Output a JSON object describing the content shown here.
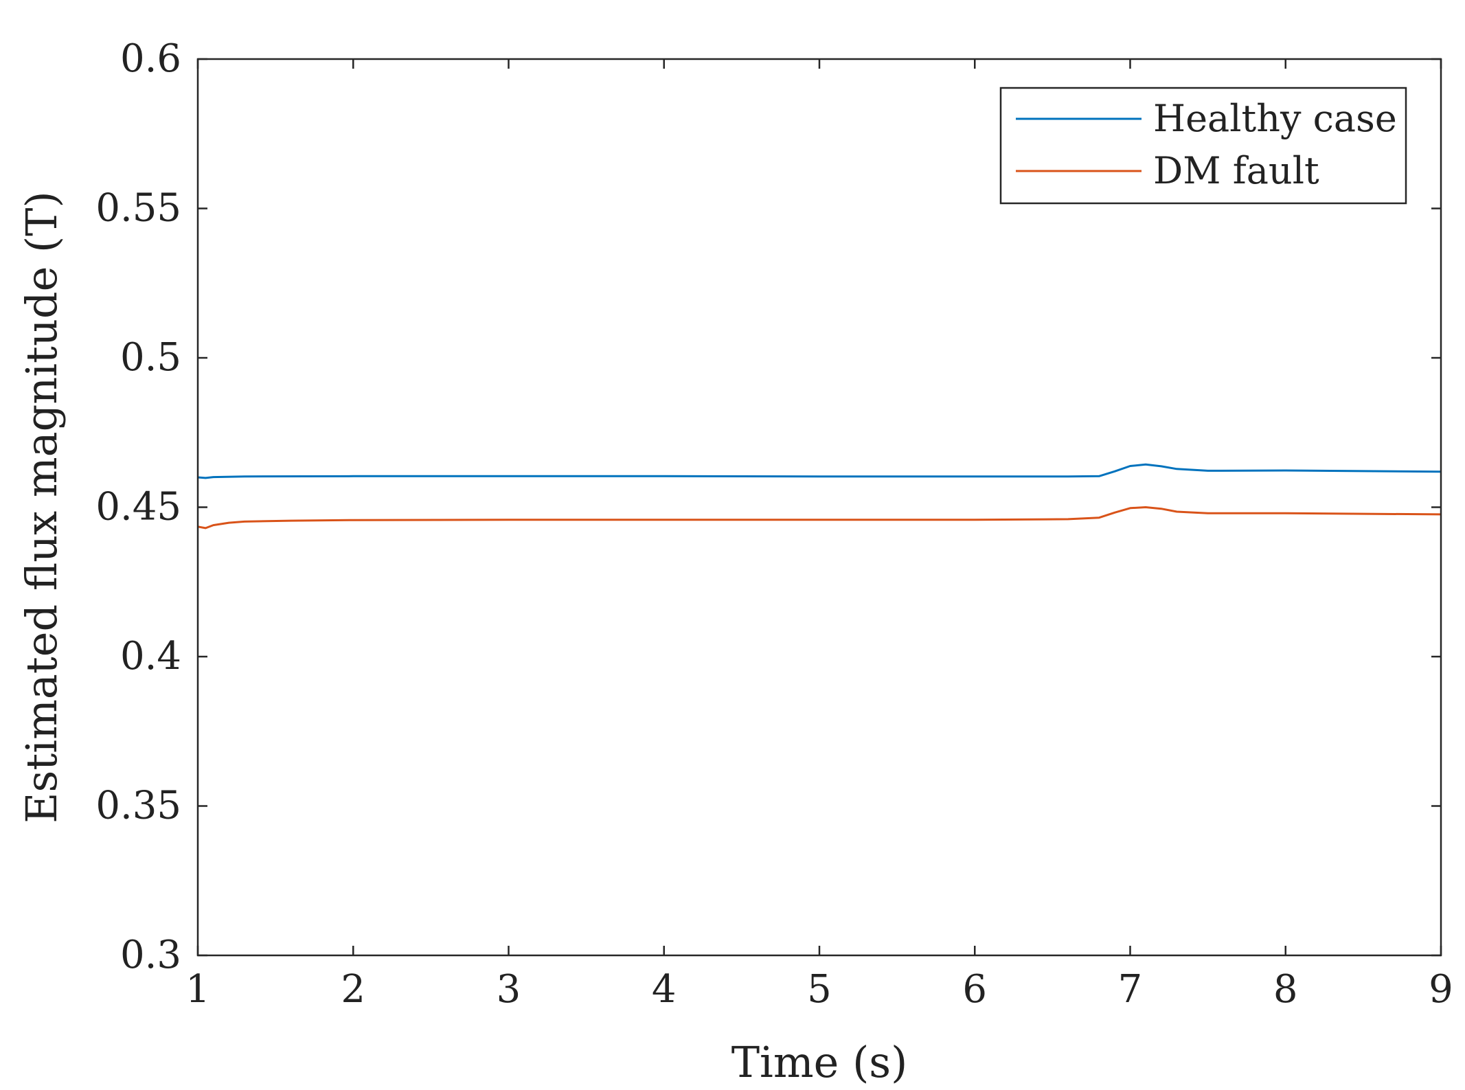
{
  "chart_data": {
    "type": "line",
    "title": "",
    "xlabel": "Time (s)",
    "ylabel": "Estimated flux magnitude (T)",
    "xlim": [
      1,
      9
    ],
    "ylim": [
      0.3,
      0.6
    ],
    "xticks": [
      1,
      2,
      3,
      4,
      5,
      6,
      7,
      8,
      9
    ],
    "yticks": [
      0.3,
      0.35,
      0.4,
      0.45,
      0.5,
      0.55,
      0.6
    ],
    "x_tick_labels": [
      "1",
      "2",
      "3",
      "4",
      "5",
      "6",
      "7",
      "8",
      "9"
    ],
    "y_tick_labels": [
      "0.3",
      "0.35",
      "0.4",
      "0.45",
      "0.5",
      "0.55",
      "0.6"
    ],
    "grid": false,
    "legend_position": "top-right",
    "series": [
      {
        "name": "Healthy case",
        "color": "#0072BD",
        "x": [
          1.0,
          1.05,
          1.1,
          1.3,
          2.0,
          3.0,
          4.0,
          5.0,
          6.0,
          6.6,
          6.8,
          6.9,
          7.0,
          7.1,
          7.2,
          7.3,
          7.5,
          8.0,
          8.5,
          9.0
        ],
        "y": [
          0.46,
          0.4598,
          0.4601,
          0.4603,
          0.4604,
          0.4604,
          0.4604,
          0.4603,
          0.4603,
          0.4603,
          0.4604,
          0.462,
          0.4638,
          0.4643,
          0.4637,
          0.4628,
          0.4622,
          0.4623,
          0.4621,
          0.4619
        ]
      },
      {
        "name": "DM fault",
        "color": "#D95319",
        "x": [
          1.0,
          1.05,
          1.1,
          1.2,
          1.3,
          1.6,
          2.0,
          3.0,
          4.0,
          5.0,
          6.0,
          6.6,
          6.8,
          6.9,
          7.0,
          7.1,
          7.2,
          7.3,
          7.5,
          8.0,
          8.5,
          9.0
        ],
        "y": [
          0.4435,
          0.443,
          0.444,
          0.4448,
          0.4452,
          0.4455,
          0.4457,
          0.4458,
          0.4458,
          0.4458,
          0.4458,
          0.446,
          0.4465,
          0.4482,
          0.4497,
          0.45,
          0.4495,
          0.4485,
          0.448,
          0.448,
          0.4478,
          0.4476
        ]
      }
    ]
  }
}
